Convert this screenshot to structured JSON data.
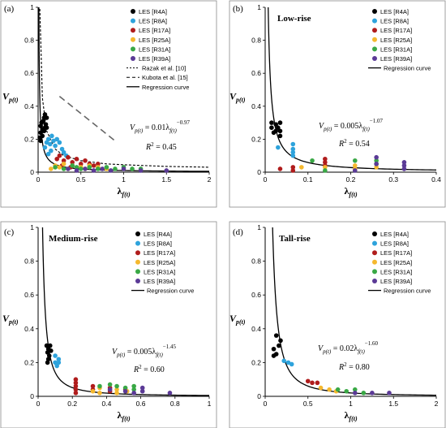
{
  "colors": {
    "R4A": "#000000",
    "R8A": "#2ea3dc",
    "R17A": "#b01c1c",
    "R25A": "#f5b82e",
    "R31A": "#39a845",
    "R39A": "#5b3a96",
    "text": "#000000"
  },
  "chart_data": [
    {
      "type": "scatter",
      "panel_label": "(a)",
      "title": "",
      "xlabel": "λf(t)",
      "ylabel": "Vp(t)",
      "xlim": [
        0,
        2
      ],
      "ylim": [
        0,
        1
      ],
      "xticks": [
        "0",
        "0.5",
        "1",
        "1.5",
        "2"
      ],
      "yticks": [
        "0",
        "0.2",
        "0.4",
        "0.6",
        "0.8",
        "1"
      ],
      "legend": [
        "LES [R4A]",
        "LES [R8A]",
        "LES [R17A]",
        "LES [R25A]",
        "LES [R31A]",
        "LES [R39A]",
        "Razak et al. [10]",
        "Kubota et al. [15]",
        "Regression curve"
      ],
      "equation": "Vp(t) = 0.01λf(t)^−0.97",
      "r2": "R² = 0.45",
      "series": [
        {
          "name": "LES [R4A]",
          "key": "R4A",
          "points": [
            [
              0.02,
              0.21
            ],
            [
              0.03,
              0.24
            ],
            [
              0.03,
              0.28
            ],
            [
              0.04,
              0.3
            ],
            [
              0.05,
              0.26
            ],
            [
              0.06,
              0.31
            ],
            [
              0.07,
              0.33
            ],
            [
              0.08,
              0.27
            ],
            [
              0.09,
              0.29
            ],
            [
              0.1,
              0.33
            ],
            [
              0.05,
              0.22
            ],
            [
              0.07,
              0.25
            ],
            [
              0.08,
              0.35
            ],
            [
              0.03,
              0.19
            ],
            [
              0.1,
              0.27
            ]
          ]
        },
        {
          "name": "LES [R8A]",
          "key": "R8A",
          "points": [
            [
              0.08,
              0.15
            ],
            [
              0.1,
              0.18
            ],
            [
              0.12,
              0.2
            ],
            [
              0.14,
              0.17
            ],
            [
              0.16,
              0.22
            ],
            [
              0.18,
              0.19
            ],
            [
              0.2,
              0.16
            ],
            [
              0.22,
              0.2
            ],
            [
              0.25,
              0.18
            ],
            [
              0.28,
              0.14
            ],
            [
              0.15,
              0.13
            ],
            [
              0.3,
              0.12
            ],
            [
              0.33,
              0.1
            ],
            [
              0.12,
              0.11
            ]
          ]
        },
        {
          "name": "LES [R17A]",
          "key": "R17A",
          "points": [
            [
              0.22,
              0.08
            ],
            [
              0.25,
              0.1
            ],
            [
              0.3,
              0.07
            ],
            [
              0.35,
              0.09
            ],
            [
              0.4,
              0.06
            ],
            [
              0.45,
              0.08
            ],
            [
              0.5,
              0.05
            ],
            [
              0.55,
              0.07
            ],
            [
              0.6,
              0.05
            ],
            [
              0.28,
              0.04
            ],
            [
              0.38,
              0.03
            ],
            [
              0.65,
              0.04
            ],
            [
              0.7,
              0.05
            ]
          ]
        },
        {
          "name": "LES [R25A]",
          "key": "R25A",
          "points": [
            [
              0.15,
              0.02
            ],
            [
              0.2,
              0.04
            ],
            [
              0.25,
              0.03
            ],
            [
              0.3,
              0.05
            ],
            [
              0.35,
              0.02
            ],
            [
              0.4,
              0.04
            ],
            [
              0.5,
              0.03
            ],
            [
              0.55,
              0.02
            ],
            [
              0.6,
              0.04
            ],
            [
              0.7,
              0.03
            ],
            [
              0.8,
              0.02
            ]
          ]
        },
        {
          "name": "LES [R31A]",
          "key": "R31A",
          "points": [
            [
              0.2,
              0.03
            ],
            [
              0.3,
              0.02
            ],
            [
              0.4,
              0.04
            ],
            [
              0.45,
              0.03
            ],
            [
              0.5,
              0.02
            ],
            [
              0.6,
              0.03
            ],
            [
              0.7,
              0.02
            ],
            [
              0.8,
              0.03
            ],
            [
              0.9,
              0.02
            ],
            [
              1.0,
              0.03
            ],
            [
              1.1,
              0.02
            ],
            [
              1.2,
              0.02
            ]
          ]
        },
        {
          "name": "LES [R39A]",
          "key": "R39A",
          "points": [
            [
              0.35,
              0.02
            ],
            [
              0.45,
              0.01
            ],
            [
              0.55,
              0.02
            ],
            [
              0.65,
              0.01
            ],
            [
              0.75,
              0.02
            ],
            [
              0.85,
              0.01
            ],
            [
              1.0,
              0.02
            ],
            [
              1.2,
              0.01
            ],
            [
              1.5,
              0.01
            ]
          ]
        }
      ],
      "reference_curves": [
        {
          "name": "Razak et al. [10]",
          "style": "fine-dashed",
          "x": [
            0.02,
            0.05,
            0.1,
            0.2,
            0.3,
            0.5,
            0.8,
            1.0,
            1.5,
            2.0
          ],
          "y": [
            0.99,
            0.45,
            0.25,
            0.14,
            0.1,
            0.07,
            0.05,
            0.045,
            0.035,
            0.03
          ]
        },
        {
          "name": "Kubota et al. [15]",
          "style": "long-dashed",
          "x": [
            0.25,
            0.9
          ],
          "y": [
            0.46,
            0.19
          ]
        }
      ],
      "regression": {
        "a": 0.01,
        "b": -0.97
      }
    },
    {
      "type": "scatter",
      "panel_label": "(b)",
      "title": "Low-rise",
      "xlabel": "λf(t)",
      "ylabel": "Vp(t)",
      "xlim": [
        0,
        0.4
      ],
      "ylim": [
        0,
        1
      ],
      "xticks": [
        "0",
        "0.1",
        "0.2",
        "0.3",
        "0.4"
      ],
      "yticks": [
        "0",
        "0.2",
        "0.4",
        "0.6",
        "0.8",
        "1"
      ],
      "legend": [
        "LES [R4A]",
        "LES [R8A]",
        "LES [R17A]",
        "LES [R25A]",
        "LES [R31A]",
        "LES [R39A]",
        "Regression curve"
      ],
      "equation": "Vp(t) = 0.005λf(t)^−1.07",
      "r2": "R² = 0.54",
      "series": [
        {
          "name": "LES [R4A]",
          "key": "R4A",
          "points": [
            [
              0.015,
              0.3
            ],
            [
              0.015,
              0.27
            ],
            [
              0.02,
              0.24
            ],
            [
              0.025,
              0.29
            ],
            [
              0.025,
              0.25
            ],
            [
              0.03,
              0.27
            ],
            [
              0.035,
              0.3
            ],
            [
              0.035,
              0.25
            ],
            [
              0.035,
              0.22
            ]
          ]
        },
        {
          "name": "LES [R8A]",
          "key": "R8A",
          "points": [
            [
              0.03,
              0.15
            ],
            [
              0.065,
              0.17
            ],
            [
              0.065,
              0.14
            ],
            [
              0.065,
              0.12
            ],
            [
              0.065,
              0.1
            ]
          ]
        },
        {
          "name": "LES [R17A]",
          "key": "R17A",
          "points": [
            [
              0.035,
              0.02
            ],
            [
              0.065,
              0.03
            ],
            [
              0.065,
              0.01
            ],
            [
              0.14,
              0.08
            ],
            [
              0.14,
              0.06
            ],
            [
              0.14,
              0.04
            ]
          ]
        },
        {
          "name": "LES [R25A]",
          "key": "R25A",
          "points": [
            [
              0.085,
              0.03
            ],
            [
              0.14,
              0.03
            ],
            [
              0.21,
              0.04
            ],
            [
              0.21,
              0.02
            ],
            [
              0.26,
              0.03
            ]
          ]
        },
        {
          "name": "LES [R31A]",
          "key": "R31A",
          "points": [
            [
              0.11,
              0.07
            ],
            [
              0.21,
              0.07
            ],
            [
              0.26,
              0.07
            ],
            [
              0.26,
              0.05
            ],
            [
              0.14,
              0.01
            ]
          ]
        },
        {
          "name": "LES [R39A]",
          "key": "R39A",
          "points": [
            [
              0.26,
              0.09
            ],
            [
              0.26,
              0.05
            ],
            [
              0.325,
              0.06
            ],
            [
              0.325,
              0.04
            ],
            [
              0.325,
              0.02
            ],
            [
              0.21,
              0.01
            ]
          ]
        }
      ],
      "regression": {
        "a": 0.005,
        "b": -1.07
      }
    },
    {
      "type": "scatter",
      "panel_label": "(c)",
      "title": "Medium-rise",
      "xlabel": "λf(t)",
      "ylabel": "Vp(t)",
      "xlim": [
        0,
        1
      ],
      "ylim": [
        0,
        1
      ],
      "xticks": [
        "0",
        "0.2",
        "0.4",
        "0.6",
        "0.8",
        "1"
      ],
      "yticks": [
        "0",
        "0.2",
        "0.4",
        "0.6",
        "0.8",
        "1"
      ],
      "legend": [
        "LES [R4A]",
        "LES [R8A]",
        "LES [R17A]",
        "LES [R25A]",
        "LES [R31A]",
        "LES [R39A]",
        "Regression curve"
      ],
      "equation": "Vp(t) = 0.005λf(t)^−1.45",
      "r2": "R² = 0.60",
      "series": [
        {
          "name": "LES [R4A]",
          "key": "R4A",
          "points": [
            [
              0.05,
              0.3
            ],
            [
              0.055,
              0.26
            ],
            [
              0.06,
              0.22
            ],
            [
              0.06,
              0.28
            ],
            [
              0.07,
              0.3
            ],
            [
              0.065,
              0.24
            ],
            [
              0.055,
              0.2
            ],
            [
              0.075,
              0.27
            ]
          ]
        },
        {
          "name": "LES [R8A]",
          "key": "R8A",
          "points": [
            [
              0.1,
              0.24
            ],
            [
              0.1,
              0.2
            ],
            [
              0.11,
              0.18
            ],
            [
              0.12,
              0.2
            ],
            [
              0.12,
              0.22
            ]
          ]
        },
        {
          "name": "LES [R17A]",
          "key": "R17A",
          "points": [
            [
              0.22,
              0.1
            ],
            [
              0.22,
              0.08
            ],
            [
              0.22,
              0.06
            ],
            [
              0.22,
              0.04
            ],
            [
              0.22,
              0.02
            ],
            [
              0.32,
              0.06
            ],
            [
              0.32,
              0.04
            ],
            [
              0.42,
              0.05
            ],
            [
              0.42,
              0.03
            ],
            [
              0.51,
              0.04
            ]
          ]
        },
        {
          "name": "LES [R25A]",
          "key": "R25A",
          "points": [
            [
              0.32,
              0.03
            ],
            [
              0.36,
              0.05
            ],
            [
              0.36,
              0.02
            ],
            [
              0.46,
              0.04
            ],
            [
              0.46,
              0.02
            ],
            [
              0.52,
              0.03
            ]
          ]
        },
        {
          "name": "LES [R31A]",
          "key": "R31A",
          "points": [
            [
              0.36,
              0.06
            ],
            [
              0.42,
              0.07
            ],
            [
              0.46,
              0.06
            ],
            [
              0.51,
              0.05
            ],
            [
              0.56,
              0.06
            ],
            [
              0.56,
              0.04
            ]
          ]
        },
        {
          "name": "LES [R39A]",
          "key": "R39A",
          "points": [
            [
              0.42,
              0.04
            ],
            [
              0.51,
              0.03
            ],
            [
              0.56,
              0.02
            ],
            [
              0.61,
              0.05
            ],
            [
              0.61,
              0.03
            ],
            [
              0.77,
              0.02
            ]
          ]
        }
      ],
      "regression": {
        "a": 0.005,
        "b": -1.45
      }
    },
    {
      "type": "scatter",
      "panel_label": "(d)",
      "title": "Tall-rise",
      "xlabel": "λf(t)",
      "ylabel": "Vp(t)",
      "xlim": [
        0,
        2
      ],
      "ylim": [
        0,
        1
      ],
      "xticks": [
        "0",
        "0.5",
        "1",
        "1.5",
        "2"
      ],
      "yticks": [
        "0",
        "0.2",
        "0.4",
        "0.6",
        "0.8",
        "1"
      ],
      "legend": [
        "LES [R4A]",
        "LES [R8A]",
        "LES [R17A]",
        "LES [R25A]",
        "LES [R31A]",
        "LES [R39A]",
        "Regression curve"
      ],
      "equation": "Vp(t) = 0.02λf(t)^−1.60",
      "r2": "R² = 0.80",
      "series": [
        {
          "name": "LES [R4A]",
          "key": "R4A",
          "points": [
            [
              0.1,
              0.24
            ],
            [
              0.1,
              0.28
            ],
            [
              0.13,
              0.25
            ],
            [
              0.13,
              0.36
            ],
            [
              0.16,
              0.3
            ],
            [
              0.18,
              0.33
            ]
          ]
        },
        {
          "name": "LES [R8A]",
          "key": "R8A",
          "points": [
            [
              0.22,
              0.21
            ],
            [
              0.27,
              0.2
            ],
            [
              0.31,
              0.19
            ]
          ]
        },
        {
          "name": "LES [R17A]",
          "key": "R17A",
          "points": [
            [
              0.5,
              0.09
            ],
            [
              0.55,
              0.08
            ],
            [
              0.61,
              0.08
            ]
          ]
        },
        {
          "name": "LES [R25A]",
          "key": "R25A",
          "points": [
            [
              0.65,
              0.05
            ],
            [
              0.75,
              0.04
            ],
            [
              0.83,
              0.03
            ]
          ]
        },
        {
          "name": "LES [R31A]",
          "key": "R31A",
          "points": [
            [
              0.85,
              0.04
            ],
            [
              0.95,
              0.03
            ],
            [
              1.05,
              0.04
            ],
            [
              1.15,
              0.02
            ]
          ]
        },
        {
          "name": "LES [R39A]",
          "key": "R39A",
          "points": [
            [
              1.05,
              0.02
            ],
            [
              1.25,
              0.02
            ],
            [
              1.45,
              0.02
            ]
          ]
        }
      ],
      "regression": {
        "a": 0.02,
        "b": -1.6
      }
    }
  ]
}
